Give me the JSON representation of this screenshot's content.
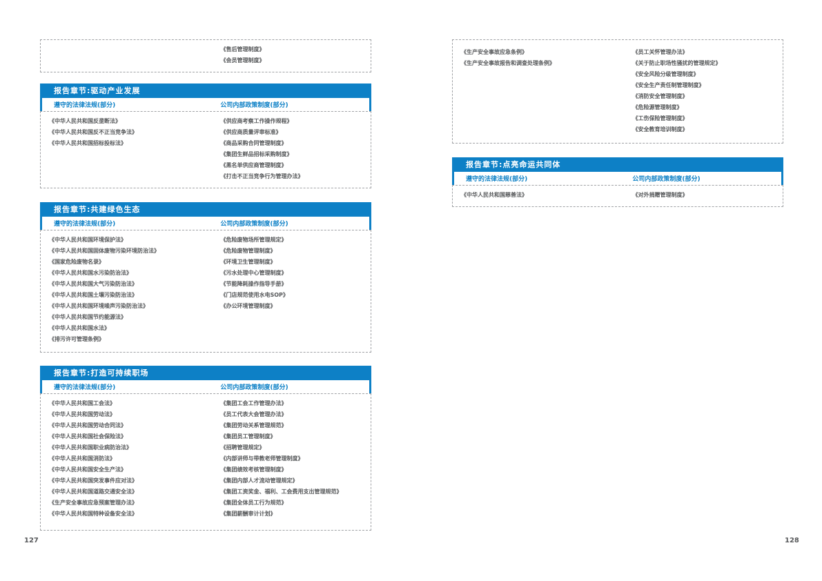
{
  "colors": {
    "header_blue": "#0d80c6",
    "body_text_gray": "#56585a",
    "dashed_border_gray": "#9fa1a4"
  },
  "col_headers": {
    "laws": "遵守的法律法规(部分)",
    "policies": "公司内部政策制度(部分)"
  },
  "page_left": {
    "page_number": "127",
    "continuation": {
      "laws": [],
      "policies": [
        "《售后管理制度》",
        "《会员管理制度》"
      ]
    },
    "sections": [
      {
        "title": "报告章节:驱动产业发展",
        "laws": [
          "《中华人民共和国反垄断法》",
          "《中华人民共和国反不正当竞争法》",
          "《中华人民共和国招标投标法》"
        ],
        "policies": [
          "《供应商考察工作操作规程》",
          "《供应商质量评审标准》",
          "《商品采购合同管理制度》",
          "《集团生鲜品招标采购制度》",
          "《黑名单供应商管理制度》",
          "《打击不正当竞争行为管理办法》"
        ]
      },
      {
        "title": "报告章节:共建绿色生态",
        "laws": [
          "《中华人民共和国环境保护法》",
          "《中华人民共和国固体废物污染环境防治法》",
          "《国家危险废物名录》",
          "《中华人民共和国水污染防治法》",
          "《中华人民共和国大气污染防治法》",
          "《中华人民共和国土壤污染防治法》",
          "《中华人民共和国环境噪声污染防治法》",
          "《中华人民共和国节约能源法》",
          "《中华人民共和国水法》",
          "《排污许可管理条例》"
        ],
        "policies": [
          "《危险废物场所管理规定》",
          "《危险废物管理制度》",
          "《环境卫生管理制度》",
          "《污水处理中心管理制度》",
          "《节能降耗操作指导手册》",
          "《门店规范使用水电SOP》",
          "《办公环境管理制度》"
        ]
      },
      {
        "title": "报告章节:打造可持续职场",
        "laws": [
          "《中华人民共和国工会法》",
          "《中华人民共和国劳动法》",
          "《中华人民共和国劳动合同法》",
          "《中华人民共和国社会保险法》",
          "《中华人民共和国职业病防治法》",
          "《中华人民共和国消防法》",
          "《中华人民共和国安全生产法》",
          "《中华人民共和国突发事件应对法》",
          "《中华人民共和国道路交通安全法》",
          "《生产安全事故应急预案管理办法》",
          "《中华人民共和国特种设备安全法》"
        ],
        "policies": [
          "《集团工会工作管理办法》",
          "《员工代表大会管理办法》",
          "《集团劳动关系管理规范》",
          "《集团员工管理制度》",
          "《招聘管理规定》",
          "《内部讲师与带教老师管理制度》",
          "《集团绩效考核管理制度》",
          "《集团内部人才流动管理规定》",
          "《集团工资奖金、福利、工会费用支出管理规范》",
          "《集团全体员工行为规范》",
          "《集团薪酬审计计划》"
        ]
      }
    ]
  },
  "page_right": {
    "page_number": "128",
    "continuation": {
      "laws": [
        "《生产安全事故应急条例》",
        "《生产安全事故报告和调查处理条例》"
      ],
      "policies": [
        "《员工关怀管理办法》",
        "《关于防止职场性骚扰的管理规定》",
        "《安全风险分级管理制度》",
        "《安全生产责任制管理制度》",
        "《消防安全管理制度》",
        "《危险源管理制度》",
        "《工伤保险管理制度》",
        "《安全教育培训制度》"
      ]
    },
    "sections": [
      {
        "title": "报告章节:点亮命运共同体",
        "laws": [
          "《中华人民共和国慈善法》"
        ],
        "policies": [
          "《对外捐赠管理制度》"
        ]
      }
    ]
  }
}
